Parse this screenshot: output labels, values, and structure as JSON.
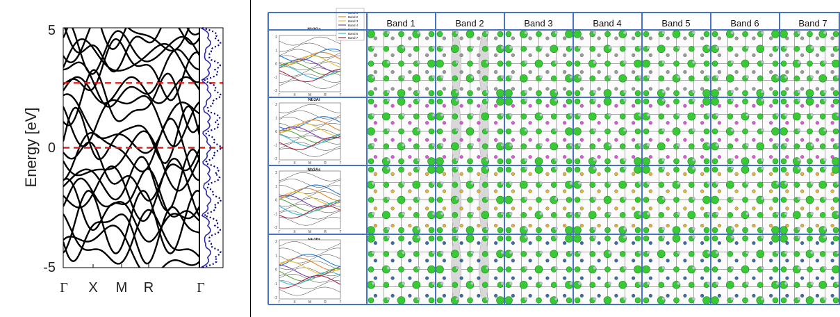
{
  "left_plot": {
    "ylabel": "Energy [eV]",
    "y_ticks": [
      "5",
      "0",
      "-5"
    ],
    "x_ticks": [
      "Γ",
      "X",
      "M",
      "R",
      "Γ"
    ],
    "ylim": [
      -5,
      5
    ],
    "fermi_levels": [
      0,
      2.7
    ],
    "colors": {
      "bands": "#000000",
      "fermi": "#e0201a",
      "dos_solid": "#2a2aa8",
      "dos_dotted": "#000080"
    }
  },
  "right_grid": {
    "band_headers": [
      "Band 1",
      "Band 2",
      "Band 3",
      "Band 4",
      "Band 5",
      "Band 6",
      "Band 7"
    ],
    "rows": [
      {
        "compound": "Nb3Ge",
        "atom_color": "#9a9a9a"
      },
      {
        "compound": "Nb3Al",
        "atom_color": "#d95ad9"
      },
      {
        "compound": "Nb3As",
        "atom_color": "#e3b23c"
      },
      {
        "compound": "Nb3Pt",
        "atom_color": "#3d6aa8"
      }
    ],
    "mini_legend": [
      "Band 1",
      "Band 2",
      "Band 3",
      "Band 4",
      "Band 5",
      "Band 6",
      "Band 7"
    ],
    "mini_x_ticks": [
      "Γ",
      "X",
      "M",
      "R",
      "Γ"
    ],
    "mini_y_ticks": [
      "2",
      "1",
      "0",
      "-1",
      "-2"
    ],
    "band_colors": [
      "#1f77d4",
      "#e6842a",
      "#e8c33a",
      "#7a3fb0",
      "#5aa83a",
      "#35b8d8",
      "#a8203a"
    ],
    "colors": {
      "frame": "#4472c4",
      "orbital": "#39c936",
      "orbital_dark": "#1e8a1e",
      "lobe": "#d8d8d8"
    }
  }
}
